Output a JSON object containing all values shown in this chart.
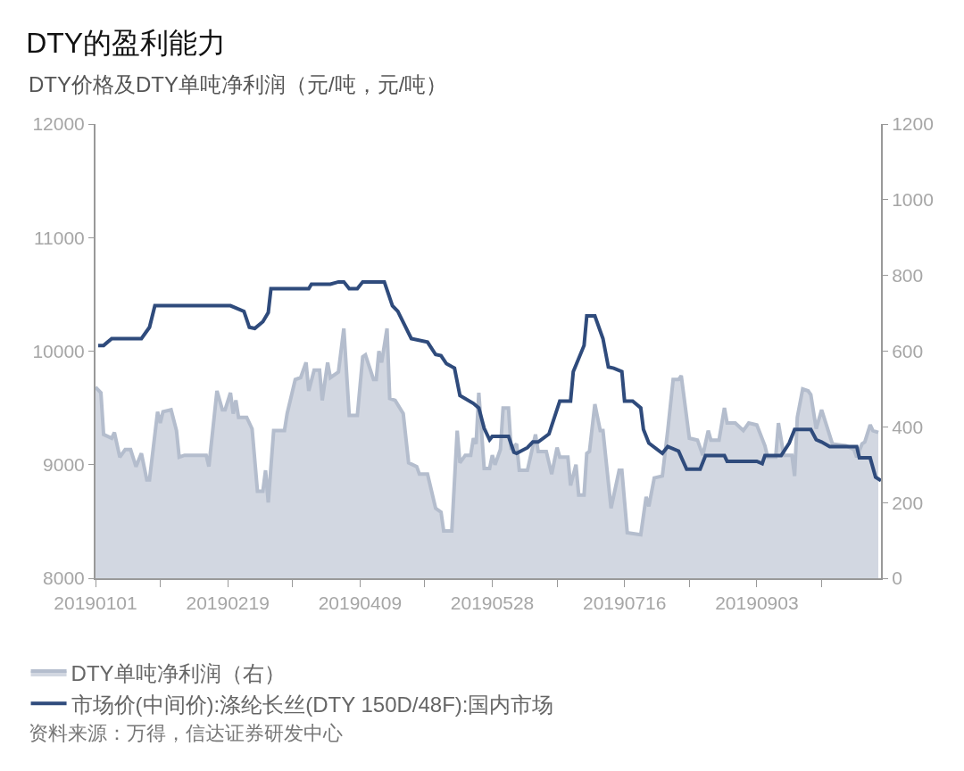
{
  "chart_data": {
    "type": "line",
    "title": "DTY的盈利能力",
    "subtitle": "DTY价格及DTY单吨净利润（元/吨，元/吨）",
    "legend": "bottom",
    "annotations": [
      "资料来源：万得，信达证券研发中心"
    ],
    "xlim": [
      "2019-01-01",
      "2019-10-19"
    ],
    "xticks": [
      {
        "value": "2019-01-01",
        "label": "20190101"
      },
      {
        "value": "2019-01-25",
        "label": null
      },
      {
        "value": "2019-02-19",
        "label": "20190219"
      },
      {
        "value": "2019-03-15",
        "label": null
      },
      {
        "value": "2019-04-09",
        "label": "20190409"
      },
      {
        "value": "2019-05-03",
        "label": null
      },
      {
        "value": "2019-05-28",
        "label": "20190528"
      },
      {
        "value": "2019-06-21",
        "label": null
      },
      {
        "value": "2019-07-16",
        "label": "20190716"
      },
      {
        "value": "2019-08-09",
        "label": null
      },
      {
        "value": "2019-09-03",
        "label": "20190903"
      },
      {
        "value": "2019-09-27",
        "label": null
      }
    ],
    "ylim": [
      8000,
      12000
    ],
    "yticks": [
      8000,
      9000,
      10000,
      11000,
      12000
    ],
    "y2lim": [
      0,
      1200
    ],
    "y2ticks": [
      0,
      200,
      400,
      600,
      800,
      1000,
      1200
    ],
    "series": [
      {
        "name": "DTY单吨净利润（右）",
        "type": "area",
        "axis": "y2",
        "color": "#b4bdcd",
        "x": [
          "2019-01-01",
          "2019-01-03",
          "2019-01-04",
          "2019-01-07",
          "2019-01-08",
          "2019-01-10",
          "2019-01-12",
          "2019-01-14",
          "2019-01-16",
          "2019-01-18",
          "2019-01-20",
          "2019-01-21",
          "2019-01-24",
          "2019-01-25",
          "2019-01-26",
          "2019-01-29",
          "2019-01-31",
          "2019-02-01",
          "2019-02-03",
          "2019-02-11",
          "2019-02-12",
          "2019-02-15",
          "2019-02-17",
          "2019-02-18",
          "2019-02-20",
          "2019-02-21",
          "2019-02-22",
          "2019-02-23",
          "2019-02-26",
          "2019-02-28",
          "2019-03-02",
          "2019-03-04",
          "2019-03-05",
          "2019-03-06",
          "2019-03-08",
          "2019-03-12",
          "2019-03-13",
          "2019-03-16",
          "2019-03-18",
          "2019-03-20",
          "2019-03-21",
          "2019-03-23",
          "2019-03-25",
          "2019-03-26",
          "2019-03-28",
          "2019-03-29",
          "2019-04-01",
          "2019-04-03",
          "2019-04-05",
          "2019-04-08",
          "2019-04-10",
          "2019-04-11",
          "2019-04-14",
          "2019-04-15",
          "2019-04-16",
          "2019-04-17",
          "2019-04-19",
          "2019-04-20",
          "2019-04-22",
          "2019-04-25",
          "2019-04-27",
          "2019-04-30",
          "2019-05-01",
          "2019-05-04",
          "2019-05-07",
          "2019-05-09",
          "2019-05-10",
          "2019-05-13",
          "2019-05-15",
          "2019-05-16",
          "2019-05-18",
          "2019-05-20",
          "2019-05-21",
          "2019-05-22",
          "2019-05-23",
          "2019-05-25",
          "2019-05-27",
          "2019-05-28",
          "2019-05-29",
          "2019-05-31",
          "2019-06-01",
          "2019-06-03",
          "2019-06-04",
          "2019-06-06",
          "2019-06-07",
          "2019-06-10",
          "2019-06-13",
          "2019-06-14",
          "2019-06-17",
          "2019-06-19",
          "2019-06-21",
          "2019-06-22",
          "2019-06-25",
          "2019-06-26",
          "2019-06-28",
          "2019-06-29",
          "2019-07-01",
          "2019-07-02",
          "2019-07-03",
          "2019-07-05",
          "2019-07-07",
          "2019-07-08",
          "2019-07-11",
          "2019-07-14",
          "2019-07-15",
          "2019-07-17",
          "2019-07-22",
          "2019-07-24",
          "2019-07-25",
          "2019-07-27",
          "2019-07-30",
          "2019-08-01",
          "2019-08-03",
          "2019-08-05",
          "2019-08-06",
          "2019-08-09",
          "2019-08-12",
          "2019-08-14",
          "2019-08-16",
          "2019-08-17",
          "2019-08-20",
          "2019-08-22",
          "2019-08-23",
          "2019-08-26",
          "2019-08-29",
          "2019-08-31",
          "2019-09-03",
          "2019-09-06",
          "2019-09-07",
          "2019-09-10",
          "2019-09-11",
          "2019-09-13",
          "2019-09-16",
          "2019-09-17",
          "2019-09-18",
          "2019-09-20",
          "2019-09-22",
          "2019-09-23",
          "2019-09-25",
          "2019-09-27",
          "2019-09-29",
          "2019-10-01",
          "2019-10-06",
          "2019-10-09",
          "2019-10-10",
          "2019-10-12",
          "2019-10-13",
          "2019-10-15",
          "2019-10-16",
          "2019-10-18"
        ],
        "values": [
          505,
          490,
          380,
          370,
          385,
          320,
          340,
          340,
          295,
          330,
          260,
          260,
          440,
          410,
          440,
          445,
          390,
          320,
          325,
          325,
          295,
          495,
          445,
          445,
          490,
          435,
          470,
          425,
          425,
          395,
          230,
          230,
          285,
          200,
          390,
          390,
          435,
          525,
          530,
          570,
          495,
          550,
          550,
          470,
          570,
          530,
          545,
          660,
          430,
          430,
          585,
          590,
          525,
          525,
          600,
          570,
          660,
          475,
          470,
          435,
          305,
          295,
          275,
          275,
          185,
          175,
          125,
          125,
          390,
          305,
          325,
          325,
          370,
          355,
          490,
          290,
          290,
          325,
          300,
          340,
          450,
          450,
          340,
          355,
          285,
          285,
          380,
          335,
          335,
          275,
          345,
          320,
          320,
          245,
          300,
          220,
          220,
          330,
          335,
          460,
          390,
          390,
          185,
          285,
          285,
          120,
          115,
          215,
          190,
          265,
          270,
          390,
          525,
          525,
          535,
          370,
          365,
          325,
          390,
          365,
          365,
          450,
          410,
          410,
          390,
          410,
          405,
          350,
          320,
          320,
          410,
          325,
          325,
          270,
          425,
          500,
          495,
          485,
          395,
          445,
          400,
          355,
          350,
          340,
          320,
          355,
          360,
          405,
          390,
          385
        ]
      },
      {
        "name": "市场价(中间价):涤纶长丝(DTY 150D/48F):国内市场",
        "type": "line",
        "color": "#2f4b7c",
        "x": [
          "2019-01-02",
          "2019-01-04",
          "2019-01-07",
          "2019-01-18",
          "2019-01-21",
          "2019-01-23",
          "2019-02-20",
          "2019-02-22",
          "2019-02-25",
          "2019-02-27",
          "2019-03-01",
          "2019-03-04",
          "2019-03-06",
          "2019-03-07",
          "2019-03-21",
          "2019-03-22",
          "2019-03-29",
          "2019-04-01",
          "2019-04-03",
          "2019-04-05",
          "2019-04-08",
          "2019-04-10",
          "2019-04-18",
          "2019-04-21",
          "2019-04-23",
          "2019-04-28",
          "2019-05-04",
          "2019-05-07",
          "2019-05-09",
          "2019-05-11",
          "2019-05-14",
          "2019-05-16",
          "2019-05-21",
          "2019-05-23",
          "2019-05-25",
          "2019-05-27",
          "2019-05-28",
          "2019-06-03",
          "2019-06-05",
          "2019-06-06",
          "2019-06-10",
          "2019-06-12",
          "2019-06-14",
          "2019-06-18",
          "2019-06-22",
          "2019-06-26",
          "2019-06-27",
          "2019-07-01",
          "2019-07-02",
          "2019-07-05",
          "2019-07-08",
          "2019-07-10",
          "2019-07-12",
          "2019-07-15",
          "2019-07-16",
          "2019-07-19",
          "2019-07-22",
          "2019-07-23",
          "2019-07-25",
          "2019-07-30",
          "2019-08-01",
          "2019-08-05",
          "2019-08-08",
          "2019-08-13",
          "2019-08-15",
          "2019-08-22",
          "2019-08-23",
          "2019-09-03",
          "2019-09-05",
          "2019-09-06",
          "2019-09-12",
          "2019-09-15",
          "2019-09-17",
          "2019-09-23",
          "2019-09-25",
          "2019-09-27",
          "2019-09-30",
          "2019-10-10",
          "2019-10-11",
          "2019-10-15",
          "2019-10-17",
          "2019-10-19"
        ],
        "values": [
          10050,
          10050,
          10110,
          10110,
          10210,
          10400,
          10400,
          10380,
          10350,
          10210,
          10200,
          10260,
          10340,
          10550,
          10550,
          10590,
          10590,
          10610,
          10610,
          10550,
          10550,
          10610,
          10610,
          10400,
          10350,
          10110,
          10080,
          9970,
          9960,
          9890,
          9850,
          9610,
          9540,
          9500,
          9320,
          9220,
          9250,
          9250,
          9110,
          9100,
          9150,
          9200,
          9200,
          9270,
          9560,
          9560,
          9820,
          10050,
          10310,
          10310,
          10110,
          9860,
          9850,
          9820,
          9560,
          9560,
          9500,
          9310,
          9190,
          9100,
          9160,
          9120,
          8960,
          8960,
          9080,
          9080,
          9030,
          9030,
          9010,
          9080,
          9080,
          9190,
          9310,
          9310,
          9220,
          9200,
          9160,
          9160,
          9060,
          9060,
          8890,
          8860
        ]
      }
    ]
  }
}
